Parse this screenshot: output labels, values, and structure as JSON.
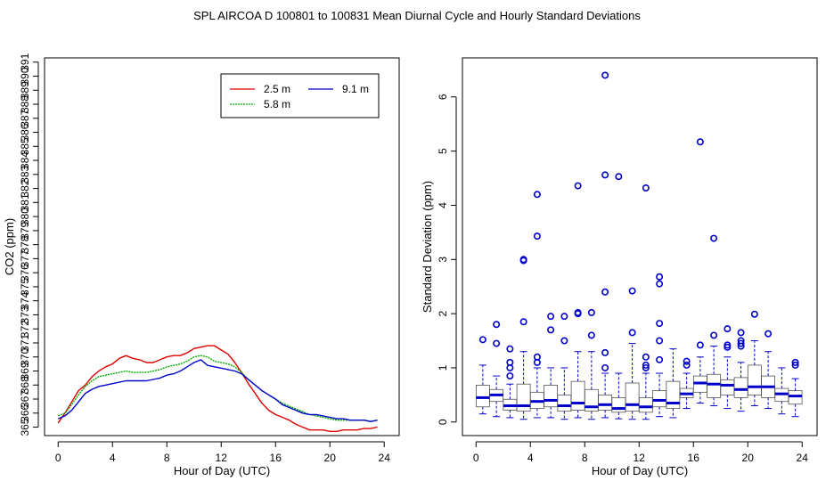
{
  "title": "SPL   AIRCOA D   100801 to 100831   Mean Diurnal Cycle and Hourly Standard Deviations",
  "chart_data": [
    {
      "type": "line",
      "xlabel": "Hour of Day (UTC)",
      "ylabel": "CO2 (ppm)",
      "xlim": [
        -1,
        25.1
      ],
      "ylim": [
        364.4,
        391.3
      ],
      "x_ticks": [
        0,
        4,
        8,
        12,
        16,
        20,
        24
      ],
      "x_tick_labels": [
        "0",
        "4",
        "8",
        "12",
        "16",
        "20",
        "24"
      ],
      "y_ticks": [
        365,
        366,
        367,
        368,
        369,
        370,
        371,
        372,
        373,
        374,
        375,
        376,
        377,
        378,
        379,
        380,
        381,
        382,
        383,
        384,
        385,
        386,
        387,
        388,
        389,
        390,
        391
      ],
      "y_tick_labels": [
        "365",
        "366",
        "367",
        "368",
        "369",
        "370",
        "371",
        "372",
        "373",
        "374",
        "375",
        "376",
        "377",
        "378",
        "379",
        "380",
        "381",
        "382",
        "383",
        "384",
        "385",
        "386",
        "387",
        "388",
        "389",
        "390",
        "391"
      ],
      "legend": {
        "position": "top-right",
        "entries": [
          "2.5 m",
          "5.8 m",
          "9.1 m"
        ]
      },
      "series": [
        {
          "name": "2.5 m",
          "color": "#dd0000",
          "x": [
            0,
            0.5,
            1,
            1.5,
            2,
            2.5,
            3,
            3.5,
            4,
            4.5,
            5,
            5.5,
            6,
            6.5,
            7,
            7.5,
            8,
            8.5,
            9,
            9.5,
            10,
            10.5,
            11,
            11.5,
            12,
            12.5,
            13,
            13.5,
            14,
            14.5,
            15,
            15.5,
            16,
            16.5,
            17,
            17.5,
            18,
            18.5,
            19,
            19.5,
            20,
            20.5,
            21,
            21.5,
            22,
            22.5,
            23,
            23.5
          ],
          "values": [
            365.3,
            366.0,
            366.8,
            367.6,
            368.0,
            368.6,
            369.0,
            369.3,
            369.5,
            369.9,
            370.1,
            369.9,
            369.8,
            369.6,
            369.6,
            369.8,
            370.0,
            370.1,
            370.1,
            370.3,
            370.6,
            370.7,
            370.8,
            370.8,
            370.5,
            370.2,
            369.6,
            368.9,
            368.1,
            367.4,
            366.7,
            366.2,
            365.9,
            365.7,
            365.5,
            365.2,
            365.0,
            364.8,
            364.8,
            364.8,
            364.7,
            364.7,
            364.8,
            364.8,
            364.8,
            364.9,
            364.9,
            365.0
          ]
        },
        {
          "name": "5.8 m",
          "color": "#00aa00",
          "x": [
            0,
            0.5,
            1,
            1.5,
            2,
            2.5,
            3,
            3.5,
            4,
            4.5,
            5,
            5.5,
            6,
            6.5,
            7,
            7.5,
            8,
            8.5,
            9,
            9.5,
            10,
            10.5,
            11,
            11.5,
            12,
            12.5,
            13,
            13.5,
            14,
            14.5,
            15,
            15.5,
            16,
            16.5,
            17,
            17.5,
            18,
            18.5,
            19,
            19.5,
            20,
            20.5,
            21,
            21.5,
            22,
            22.5,
            23,
            23.5
          ],
          "values": [
            365.8,
            366.0,
            366.6,
            367.3,
            367.9,
            368.3,
            368.6,
            368.7,
            368.8,
            368.9,
            369.0,
            368.9,
            368.9,
            368.9,
            369.0,
            369.1,
            369.3,
            369.4,
            369.5,
            369.7,
            370.0,
            370.1,
            370.0,
            369.7,
            369.6,
            369.5,
            369.3,
            368.9,
            368.4,
            368.0,
            367.6,
            367.3,
            367.0,
            366.7,
            366.5,
            366.3,
            366.1,
            365.9,
            365.8,
            365.7,
            365.6,
            365.5,
            365.5,
            365.5,
            365.5,
            365.5,
            365.4,
            365.5
          ]
        },
        {
          "name": "9.1 m",
          "color": "#0000cc",
          "x": [
            0,
            0.5,
            1,
            1.5,
            2,
            2.5,
            3,
            3.5,
            4,
            4.5,
            5,
            5.5,
            6,
            6.5,
            7,
            7.5,
            8,
            8.5,
            9,
            9.5,
            10,
            10.5,
            11,
            11.5,
            12,
            12.5,
            13,
            13.5,
            14,
            14.5,
            15,
            15.5,
            16,
            16.5,
            17,
            17.5,
            18,
            18.5,
            19,
            19.5,
            20,
            20.5,
            21,
            21.5,
            22,
            22.5,
            23,
            23.5
          ],
          "values": [
            365.6,
            365.8,
            366.2,
            366.8,
            367.4,
            367.7,
            367.9,
            368.0,
            368.1,
            368.2,
            368.3,
            368.3,
            368.3,
            368.3,
            368.4,
            368.5,
            368.7,
            368.8,
            369.0,
            369.3,
            369.6,
            369.8,
            369.4,
            369.3,
            369.2,
            369.1,
            369.0,
            368.8,
            368.4,
            368.0,
            367.6,
            367.3,
            367.0,
            366.6,
            366.4,
            366.2,
            366.0,
            365.9,
            365.9,
            365.8,
            365.7,
            365.6,
            365.6,
            365.5,
            365.5,
            365.5,
            365.4,
            365.5
          ]
        }
      ]
    },
    {
      "type": "box",
      "xlabel": "Hour of Day (UTC)",
      "ylabel": "Standard Deviation (ppm)",
      "xlim": [
        -1,
        25.1
      ],
      "ylim": [
        -0.25,
        6.72
      ],
      "x_ticks": [
        0,
        4,
        8,
        12,
        16,
        20,
        24
      ],
      "x_tick_labels": [
        "0",
        "4",
        "8",
        "12",
        "16",
        "20",
        "24"
      ],
      "y_ticks": [
        0,
        1,
        2,
        3,
        4,
        5,
        6
      ],
      "y_tick_labels": [
        "0",
        "1",
        "2",
        "3",
        "4",
        "5",
        "6"
      ],
      "color": "#0000cc",
      "boxes": [
        {
          "hour": 0.5,
          "q1": 0.28,
          "median": 0.45,
          "q3": 0.68,
          "low": 0.15,
          "high": 1.05,
          "outliers": [
            1.52
          ]
        },
        {
          "hour": 1.5,
          "q1": 0.38,
          "median": 0.5,
          "q3": 0.6,
          "low": 0.1,
          "high": 0.85,
          "outliers": [
            1.45,
            1.8
          ]
        },
        {
          "hour": 2.5,
          "q1": 0.22,
          "median": 0.3,
          "q3": 0.42,
          "low": 0.08,
          "high": 0.7,
          "outliers": [
            0.85,
            1.0,
            1.1,
            1.35
          ]
        },
        {
          "hour": 3.5,
          "q1": 0.2,
          "median": 0.3,
          "q3": 0.7,
          "low": 0.05,
          "high": 1.3,
          "outliers": [
            1.85,
            2.98,
            3.0
          ]
        },
        {
          "hour": 4.5,
          "q1": 0.25,
          "median": 0.38,
          "q3": 0.55,
          "low": 0.08,
          "high": 1.0,
          "outliers": [
            1.1,
            1.2,
            3.43,
            4.2
          ]
        },
        {
          "hour": 5.5,
          "q1": 0.28,
          "median": 0.4,
          "q3": 0.68,
          "low": 0.08,
          "high": 1.0,
          "outliers": [
            1.7,
            1.95
          ]
        },
        {
          "hour": 6.5,
          "q1": 0.2,
          "median": 0.3,
          "q3": 0.5,
          "low": 0.05,
          "high": 1.0,
          "outliers": [
            1.5,
            1.95
          ]
        },
        {
          "hour": 7.5,
          "q1": 0.22,
          "median": 0.35,
          "q3": 0.75,
          "low": 0.08,
          "high": 1.3,
          "outliers": [
            2.0,
            2.02,
            4.36
          ]
        },
        {
          "hour": 8.5,
          "q1": 0.2,
          "median": 0.28,
          "q3": 0.6,
          "low": 0.05,
          "high": 1.3,
          "outliers": [
            1.6,
            2.02
          ]
        },
        {
          "hour": 9.5,
          "q1": 0.22,
          "median": 0.32,
          "q3": 0.5,
          "low": 0.08,
          "high": 0.9,
          "outliers": [
            1.0,
            1.28,
            2.4,
            4.56,
            6.4
          ]
        },
        {
          "hour": 10.5,
          "q1": 0.18,
          "median": 0.25,
          "q3": 0.45,
          "low": 0.06,
          "high": 0.9,
          "outliers": [
            4.53
          ]
        },
        {
          "hour": 11.5,
          "q1": 0.2,
          "median": 0.32,
          "q3": 0.72,
          "low": 0.05,
          "high": 1.45,
          "outliers": [
            1.65,
            2.42
          ]
        },
        {
          "hour": 12.5,
          "q1": 0.18,
          "median": 0.28,
          "q3": 0.45,
          "low": 0.05,
          "high": 0.9,
          "outliers": [
            1.0,
            1.05,
            1.2,
            4.32
          ]
        },
        {
          "hour": 13.5,
          "q1": 0.28,
          "median": 0.4,
          "q3": 0.58,
          "low": 0.1,
          "high": 0.9,
          "outliers": [
            1.15,
            1.5,
            1.82,
            2.55,
            2.68
          ]
        },
        {
          "hour": 14.5,
          "q1": 0.25,
          "median": 0.35,
          "q3": 0.75,
          "low": 0.08,
          "high": 1.35,
          "outliers": []
        },
        {
          "hour": 15.5,
          "q1": 0.45,
          "median": 0.52,
          "q3": 0.62,
          "low": 0.25,
          "high": 0.9,
          "outliers": [
            1.05,
            1.12
          ]
        },
        {
          "hour": 16.5,
          "q1": 0.55,
          "median": 0.72,
          "q3": 0.85,
          "low": 0.35,
          "high": 1.2,
          "outliers": [
            1.42,
            5.17
          ]
        },
        {
          "hour": 17.5,
          "q1": 0.45,
          "median": 0.7,
          "q3": 0.88,
          "low": 0.3,
          "high": 1.4,
          "outliers": [
            1.6,
            3.39
          ]
        },
        {
          "hour": 18.5,
          "q1": 0.5,
          "median": 0.68,
          "q3": 0.78,
          "low": 0.25,
          "high": 1.2,
          "outliers": [
            1.38,
            1.42,
            1.72
          ]
        },
        {
          "hour": 19.5,
          "q1": 0.45,
          "median": 0.6,
          "q3": 0.82,
          "low": 0.2,
          "high": 1.1,
          "outliers": [
            1.4,
            1.45,
            1.5,
            1.65
          ]
        },
        {
          "hour": 20.5,
          "q1": 0.5,
          "median": 0.65,
          "q3": 1.05,
          "low": 0.3,
          "high": 1.5,
          "outliers": [
            1.99
          ]
        },
        {
          "hour": 21.5,
          "q1": 0.45,
          "median": 0.65,
          "q3": 0.85,
          "low": 0.25,
          "high": 1.3,
          "outliers": [
            1.63
          ]
        },
        {
          "hour": 22.5,
          "q1": 0.38,
          "median": 0.52,
          "q3": 0.62,
          "low": 0.15,
          "high": 1.0,
          "outliers": []
        },
        {
          "hour": 23.5,
          "q1": 0.33,
          "median": 0.48,
          "q3": 0.58,
          "low": 0.1,
          "high": 0.8,
          "outliers": [
            1.05,
            1.1
          ]
        }
      ]
    }
  ]
}
